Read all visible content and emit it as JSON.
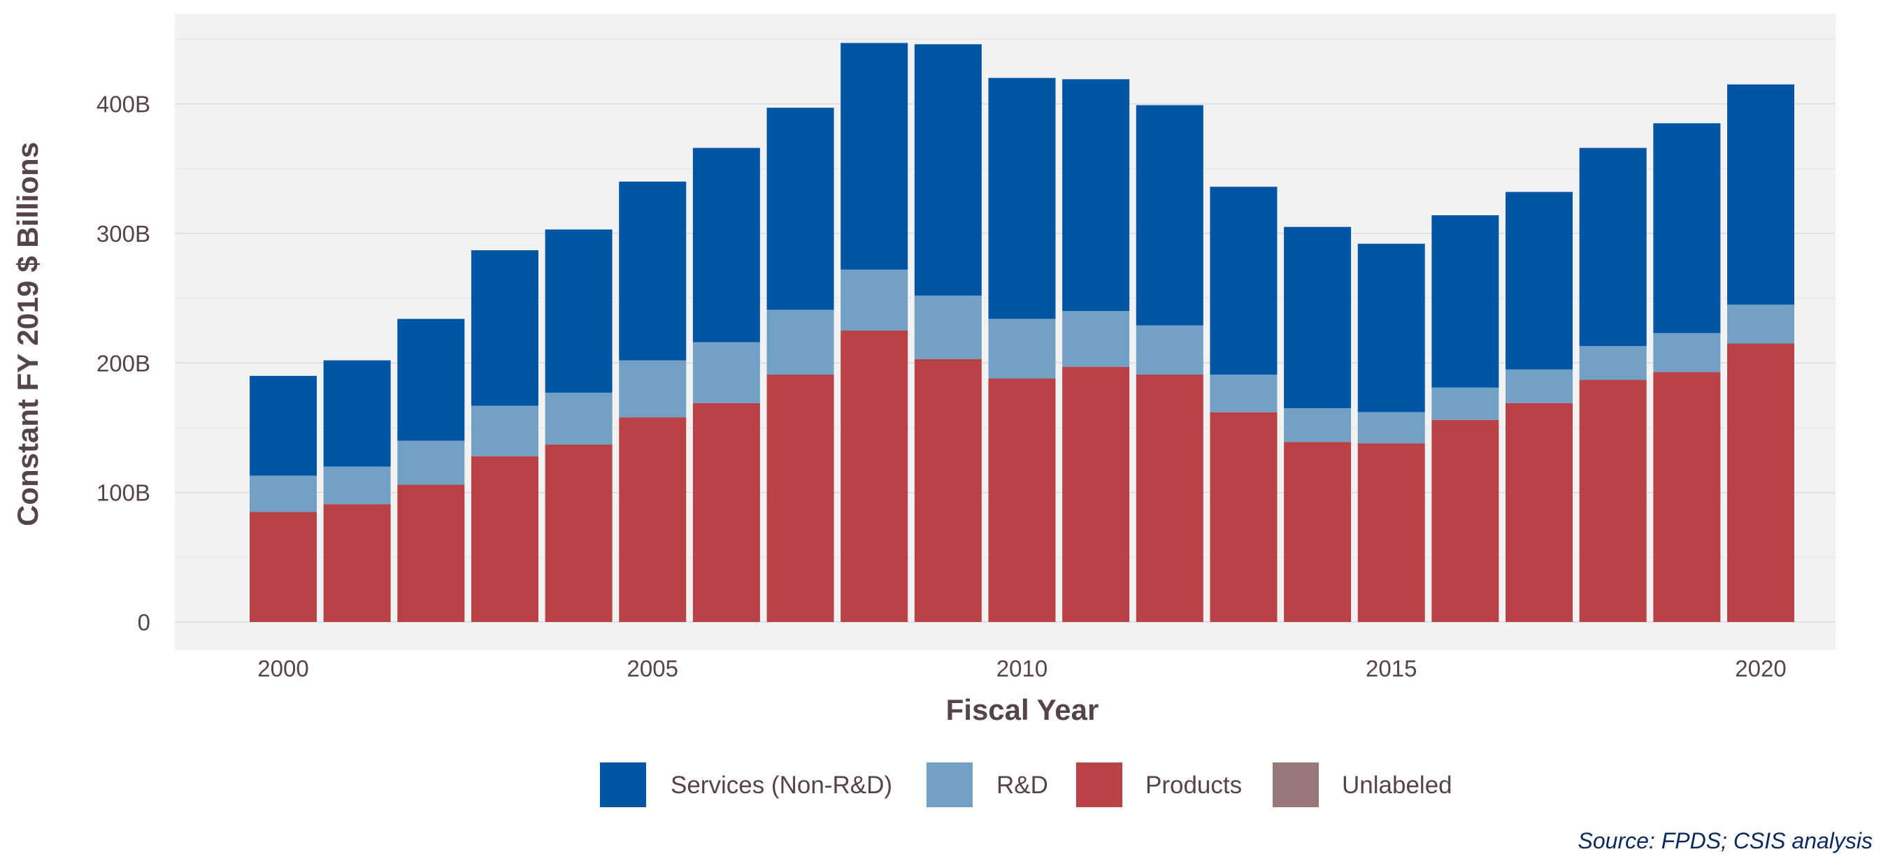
{
  "chart_data": {
    "type": "bar",
    "stacked": true,
    "title": "",
    "xlabel": "Fiscal Year",
    "ylabel": "Constant FY 2019 $ Billions",
    "ylim": [
      0,
      450
    ],
    "y_ticks": [
      {
        "value": 0,
        "label": "0"
      },
      {
        "value": 100,
        "label": "100B"
      },
      {
        "value": 200,
        "label": "200B"
      },
      {
        "value": 300,
        "label": "300B"
      },
      {
        "value": 400,
        "label": "400B"
      }
    ],
    "x_ticks": [
      {
        "value": 2000,
        "label": "2000"
      },
      {
        "value": 2005,
        "label": "2005"
      },
      {
        "value": 2010,
        "label": "2010"
      },
      {
        "value": 2015,
        "label": "2015"
      },
      {
        "value": 2020,
        "label": "2020"
      }
    ],
    "categories": [
      2000,
      2001,
      2002,
      2003,
      2004,
      2005,
      2006,
      2007,
      2008,
      2009,
      2010,
      2011,
      2012,
      2013,
      2014,
      2015,
      2016,
      2017,
      2018,
      2019,
      2020
    ],
    "series": [
      {
        "name": "Products",
        "color": "#b94247",
        "values": [
          85,
          91,
          106,
          128,
          137,
          158,
          169,
          191,
          225,
          203,
          188,
          197,
          191,
          162,
          139,
          138,
          156,
          169,
          187,
          193,
          215
        ]
      },
      {
        "name": "R&D",
        "color": "#73a1c5",
        "values": [
          28,
          29,
          34,
          39,
          40,
          44,
          47,
          50,
          47,
          49,
          46,
          43,
          38,
          29,
          26,
          24,
          25,
          26,
          26,
          30,
          30
        ]
      },
      {
        "name": "Services (Non-R&D)",
        "color": "#0055a5",
        "values": [
          77,
          82,
          94,
          120,
          126,
          138,
          150,
          156,
          175,
          194,
          186,
          179,
          170,
          145,
          140,
          130,
          133,
          137,
          153,
          162,
          170
        ]
      },
      {
        "name": "Unlabeled",
        "color": "#987878",
        "values": [
          0,
          0,
          0,
          0,
          0,
          0,
          0,
          0,
          0,
          0,
          0,
          0,
          0,
          0,
          0,
          0,
          0,
          0,
          0,
          0,
          0
        ]
      }
    ],
    "legend": {
      "placement": "bottom",
      "order": [
        "Services (Non-R&D)",
        "R&D",
        "Products",
        "Unlabeled"
      ]
    },
    "grid": true,
    "source": "Source: FPDS; CSIS analysis"
  },
  "colors": {
    "panel_background": "#f2f2f2",
    "grid_major": "#d9d9d9",
    "grid_minor": "#e8e8e8",
    "axis_title": "#554449",
    "tick_label": "#554449",
    "legend_text": "#554449",
    "source_text": "#0a2a5a"
  }
}
